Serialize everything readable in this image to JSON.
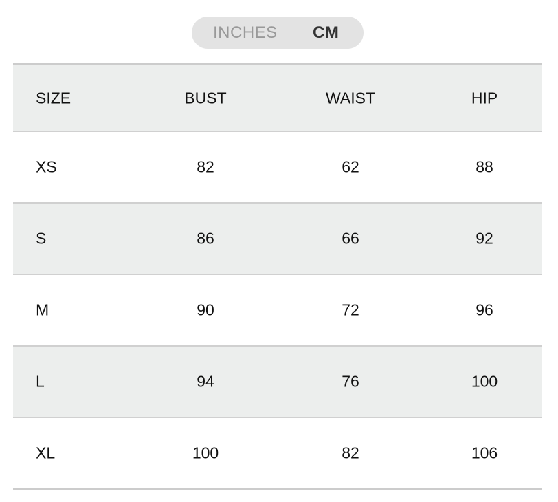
{
  "unit_toggle": {
    "options": [
      "INCHES",
      "CM"
    ],
    "selected": "CM"
  },
  "table": {
    "headers": [
      "SIZE",
      "BUST",
      "WAIST",
      "HIP"
    ],
    "rows": [
      [
        "XS",
        "82",
        "62",
        "88"
      ],
      [
        "S",
        "86",
        "66",
        "92"
      ],
      [
        "M",
        "90",
        "72",
        "96"
      ],
      [
        "L",
        "94",
        "76",
        "100"
      ],
      [
        "XL",
        "100",
        "82",
        "106"
      ]
    ]
  }
}
